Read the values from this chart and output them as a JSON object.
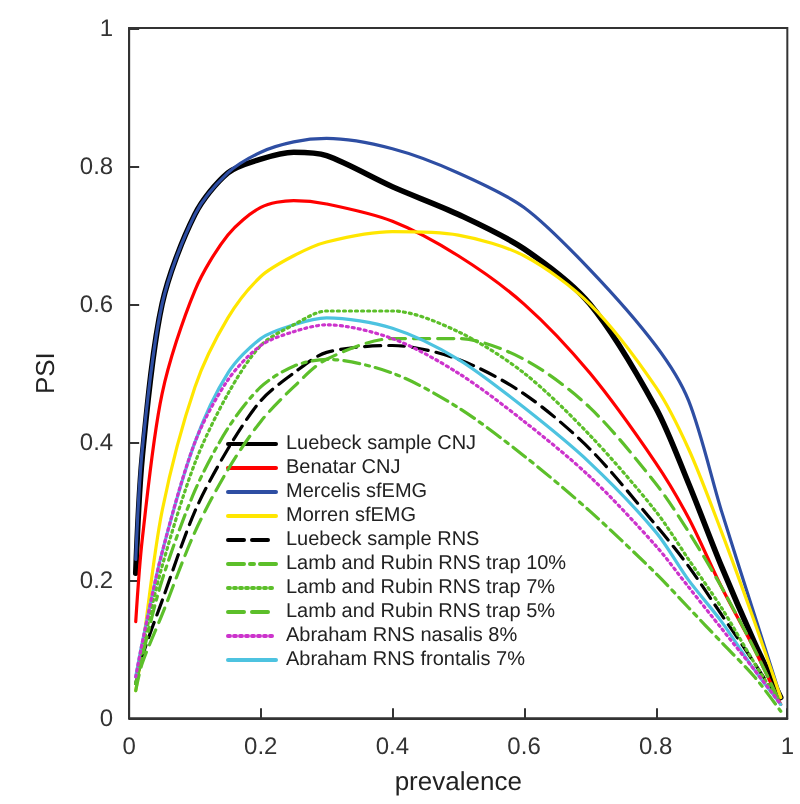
{
  "chart_data": {
    "type": "line",
    "xlabel": "prevalence",
    "ylabel": "PSI",
    "xlim": [
      0,
      1
    ],
    "ylim": [
      0,
      1
    ],
    "xticks": [
      0,
      0.2,
      0.4,
      0.6,
      0.8,
      1
    ],
    "yticks": [
      0,
      0.2,
      0.4,
      0.6,
      0.8,
      1
    ],
    "grid": false,
    "legend": "bottom left",
    "marker": "none",
    "x": [
      0.01,
      0.02,
      0.05,
      0.1,
      0.15,
      0.2,
      0.25,
      0.3,
      0.4,
      0.5,
      0.6,
      0.7,
      0.8,
      0.85,
      0.9,
      0.95,
      0.99
    ],
    "series": [
      {
        "name": "Luebeck sample CNJ",
        "color": "#000000",
        "line_style": "solid",
        "values": [
          0.21,
          0.38,
          0.6,
          0.73,
          0.79,
          0.81,
          0.82,
          0.815,
          0.77,
          0.73,
          0.68,
          0.6,
          0.45,
          0.34,
          0.22,
          0.11,
          0.03
        ]
      },
      {
        "name": "Benatar CNJ",
        "color": "#ff0000",
        "line_style": "solid",
        "values": [
          0.14,
          0.26,
          0.47,
          0.62,
          0.7,
          0.74,
          0.75,
          0.745,
          0.72,
          0.67,
          0.6,
          0.5,
          0.37,
          0.29,
          0.19,
          0.1,
          0.02
        ]
      },
      {
        "name": "Mercelis sfEMG",
        "color": "#2e4ea3",
        "line_style": "solid",
        "values": [
          0.23,
          0.39,
          0.6,
          0.73,
          0.79,
          0.82,
          0.835,
          0.84,
          0.825,
          0.79,
          0.74,
          0.65,
          0.54,
          0.46,
          0.3,
          0.15,
          0.03
        ]
      },
      {
        "name": "Morren sfEMG",
        "color": "#ffe600",
        "line_style": "solid",
        "values": [
          0.04,
          0.1,
          0.3,
          0.48,
          0.58,
          0.64,
          0.67,
          0.69,
          0.705,
          0.7,
          0.67,
          0.6,
          0.48,
          0.39,
          0.27,
          0.14,
          0.03
        ]
      },
      {
        "name": "Luebeck sample RNS",
        "color": "#000000",
        "line_style": "dashed",
        "values": [
          0.05,
          0.09,
          0.17,
          0.3,
          0.39,
          0.46,
          0.5,
          0.53,
          0.54,
          0.52,
          0.47,
          0.39,
          0.28,
          0.22,
          0.15,
          0.08,
          0.02
        ]
      },
      {
        "name": "Lamb and Rubin RNS trap 10%",
        "color": "#5cbf2a",
        "line_style": "dashdot",
        "values": [
          0.05,
          0.09,
          0.2,
          0.33,
          0.42,
          0.48,
          0.51,
          0.52,
          0.5,
          0.45,
          0.38,
          0.3,
          0.21,
          0.16,
          0.11,
          0.06,
          0.01
        ]
      },
      {
        "name": "Lamb and Rubin RNS trap 7%",
        "color": "#5cbf2a",
        "line_style": "dotted",
        "values": [
          0.05,
          0.1,
          0.22,
          0.37,
          0.47,
          0.54,
          0.57,
          0.59,
          0.59,
          0.56,
          0.5,
          0.41,
          0.3,
          0.23,
          0.16,
          0.08,
          0.02
        ]
      },
      {
        "name": "Lamb and Rubin RNS trap 5%",
        "color": "#5cbf2a",
        "line_style": "dashed",
        "values": [
          0.04,
          0.08,
          0.15,
          0.27,
          0.36,
          0.43,
          0.48,
          0.52,
          0.55,
          0.55,
          0.52,
          0.45,
          0.34,
          0.27,
          0.19,
          0.1,
          0.02
        ]
      },
      {
        "name": "Abraham RNS nasalis 8%",
        "color": "#cc33cc",
        "line_style": "dotted",
        "values": [
          0.06,
          0.11,
          0.24,
          0.4,
          0.49,
          0.54,
          0.56,
          0.57,
          0.55,
          0.5,
          0.43,
          0.35,
          0.25,
          0.19,
          0.13,
          0.07,
          0.02
        ]
      },
      {
        "name": "Abraham RNS frontalis 7%",
        "color": "#4dc3e0",
        "line_style": "solid",
        "values": [
          0.06,
          0.11,
          0.24,
          0.4,
          0.5,
          0.55,
          0.57,
          0.58,
          0.565,
          0.52,
          0.45,
          0.37,
          0.27,
          0.2,
          0.14,
          0.07,
          0.02
        ]
      }
    ]
  }
}
